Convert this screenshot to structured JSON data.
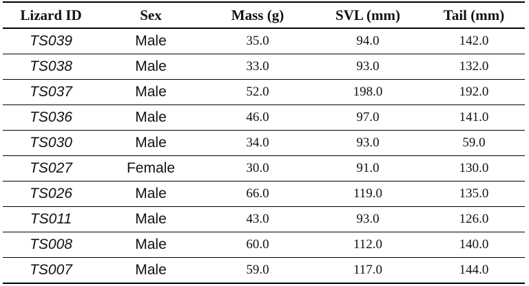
{
  "table": {
    "headers": [
      "Lizard ID",
      "Sex",
      "Mass (g)",
      "SVL (mm)",
      "Tail (mm)"
    ],
    "rows": [
      [
        "TS039",
        "Male",
        "35.0",
        "94.0",
        "142.0"
      ],
      [
        "TS038",
        "Male",
        "33.0",
        "93.0",
        "132.0"
      ],
      [
        "TS037",
        "Male",
        "52.0",
        "198.0",
        "192.0"
      ],
      [
        "TS036",
        "Male",
        "46.0",
        "97.0",
        "141.0"
      ],
      [
        "TS030",
        "Male",
        "34.0",
        "93.0",
        "59.0"
      ],
      [
        "TS027",
        "Female",
        "30.0",
        "91.0",
        "130.0"
      ],
      [
        "TS026",
        "Male",
        "66.0",
        "119.0",
        "135.0"
      ],
      [
        "TS011",
        "Male",
        "43.0",
        "93.0",
        "126.0"
      ],
      [
        "TS008",
        "Male",
        "60.0",
        "112.0",
        "140.0"
      ],
      [
        "TS007",
        "Male",
        "59.0",
        "117.0",
        "144.0"
      ]
    ]
  }
}
